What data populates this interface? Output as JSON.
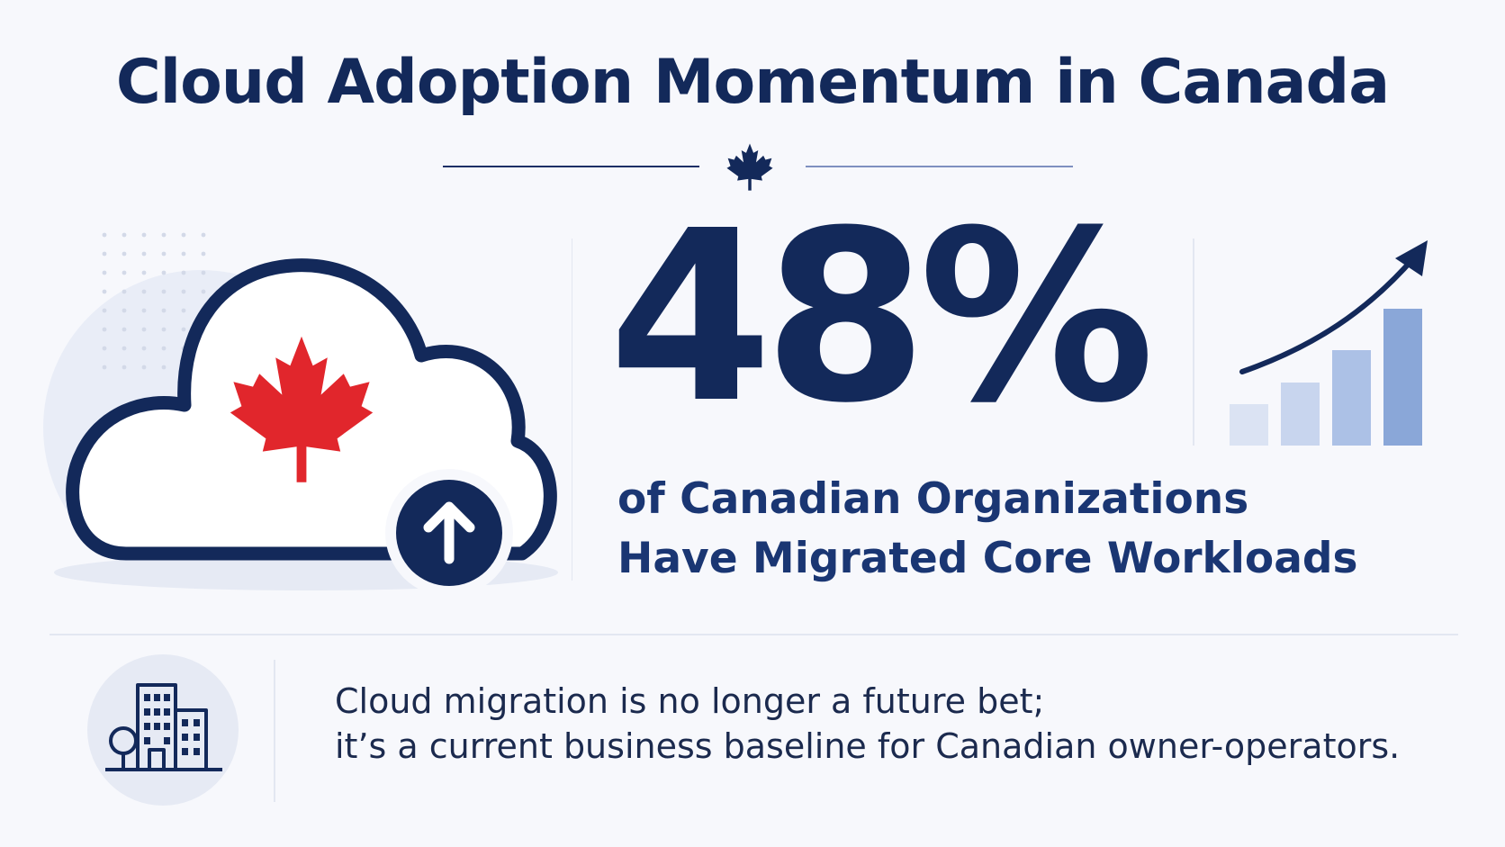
{
  "header": {
    "title": "Cloud Adoption Momentum in Canada"
  },
  "hero": {
    "stat_value": "48%",
    "caption_line1": "of Canadian Organizations",
    "caption_line2": "Have Migrated Core Workloads"
  },
  "footer": {
    "line1": "Cloud migration is no longer a future bet;",
    "line2": "it’s a current business baseline for Canadian owner-operators."
  },
  "icons": {
    "title_ornament": "maple-leaf-icon",
    "hero_icon": "cloud-upload-icon",
    "cloud_emblem": "maple-leaf-icon",
    "upload_badge": "arrow-up-icon",
    "trend_graphic": "growth-bar-chart-icon",
    "footer_icon": "office-buildings-icon"
  },
  "colors": {
    "navy": "#13295a",
    "maple_red": "#e1262c",
    "bar_light": "#dbe3f3",
    "bar_dark": "#8aa7d8",
    "background": "#f7f8fc"
  }
}
